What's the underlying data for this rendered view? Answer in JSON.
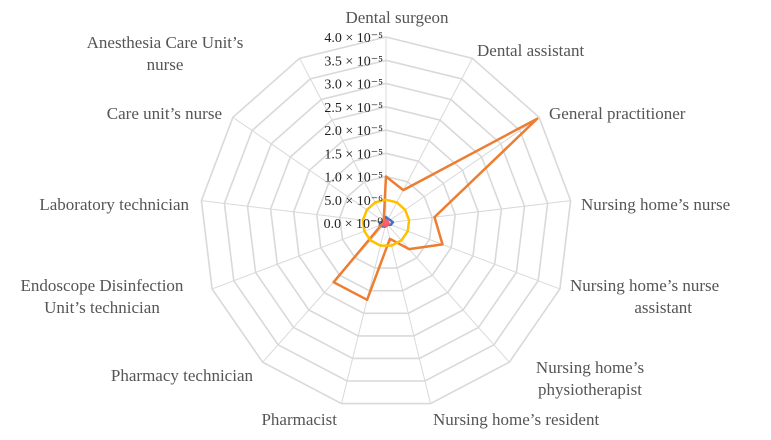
{
  "chart_data": {
    "type": "radar",
    "title": "",
    "categories": [
      "Dental surgeon",
      "Dental assistant",
      "General practitioner",
      "Nursing home’s nurse",
      "Nursing home’s nurse assistant",
      "Nursing home’s physiotherapist",
      "Nursing home’s resident",
      "Pharmacist",
      "Pharmacy technician",
      "Endoscope Disinfection Unit’s technician",
      "Laboratory technician",
      "Care unit’s nurse",
      "Anesthesia Care Unit’s nurse"
    ],
    "ticks": [
      0,
      5e-06,
      1e-05,
      1.5e-05,
      2e-05,
      2.5e-05,
      3e-05,
      3.5e-05,
      4e-05
    ],
    "tick_labels": [
      "0.0 × 10⁻⁰",
      "5.0 × 10⁻⁶",
      "1.0 × 10⁻⁵",
      "1.5 × 10⁻⁵",
      "2.0 × 10⁻⁵",
      "2.5 × 10⁻⁵",
      "3.0 × 10⁻⁵",
      "3.5 × 10⁻⁵",
      "4.0 × 10⁻⁵"
    ],
    "rlim": [
      0,
      4e-05
    ],
    "grid": true,
    "legend": "none",
    "series": [
      {
        "color": "#4472C4",
        "values": [
          1.3e-06,
          1e-06,
          1.1e-06,
          1.5e-06,
          1.1e-06,
          5e-07,
          6e-07,
          8e-07,
          1e-06,
          1.4e-06,
          1.3e-06,
          5e-07,
          8e-07
        ]
      },
      {
        "color": "#ED7D31",
        "values": [
          1e-05,
          8e-06,
          3.95e-05,
          1.05e-05,
          1.3e-05,
          7.5e-06,
          3.5e-06,
          1.7e-05,
          1.7e-05,
          1e-06,
          6e-07,
          5e-07,
          1e-06
        ]
      },
      {
        "color": "#FFC000",
        "values": [
          5e-06,
          5e-06,
          5e-06,
          5e-06,
          5e-06,
          5e-06,
          5e-06,
          5e-06,
          5e-06,
          5e-06,
          5e-06,
          5e-06,
          5e-06
        ]
      },
      {
        "color": "#FF5B6B",
        "values": [
          6e-07,
          6e-07,
          4e-07,
          5e-07,
          6e-07,
          3e-07,
          6e-07,
          5e-07,
          7e-07,
          5e-07,
          3e-07,
          3e-07,
          3e-07
        ]
      }
    ]
  }
}
